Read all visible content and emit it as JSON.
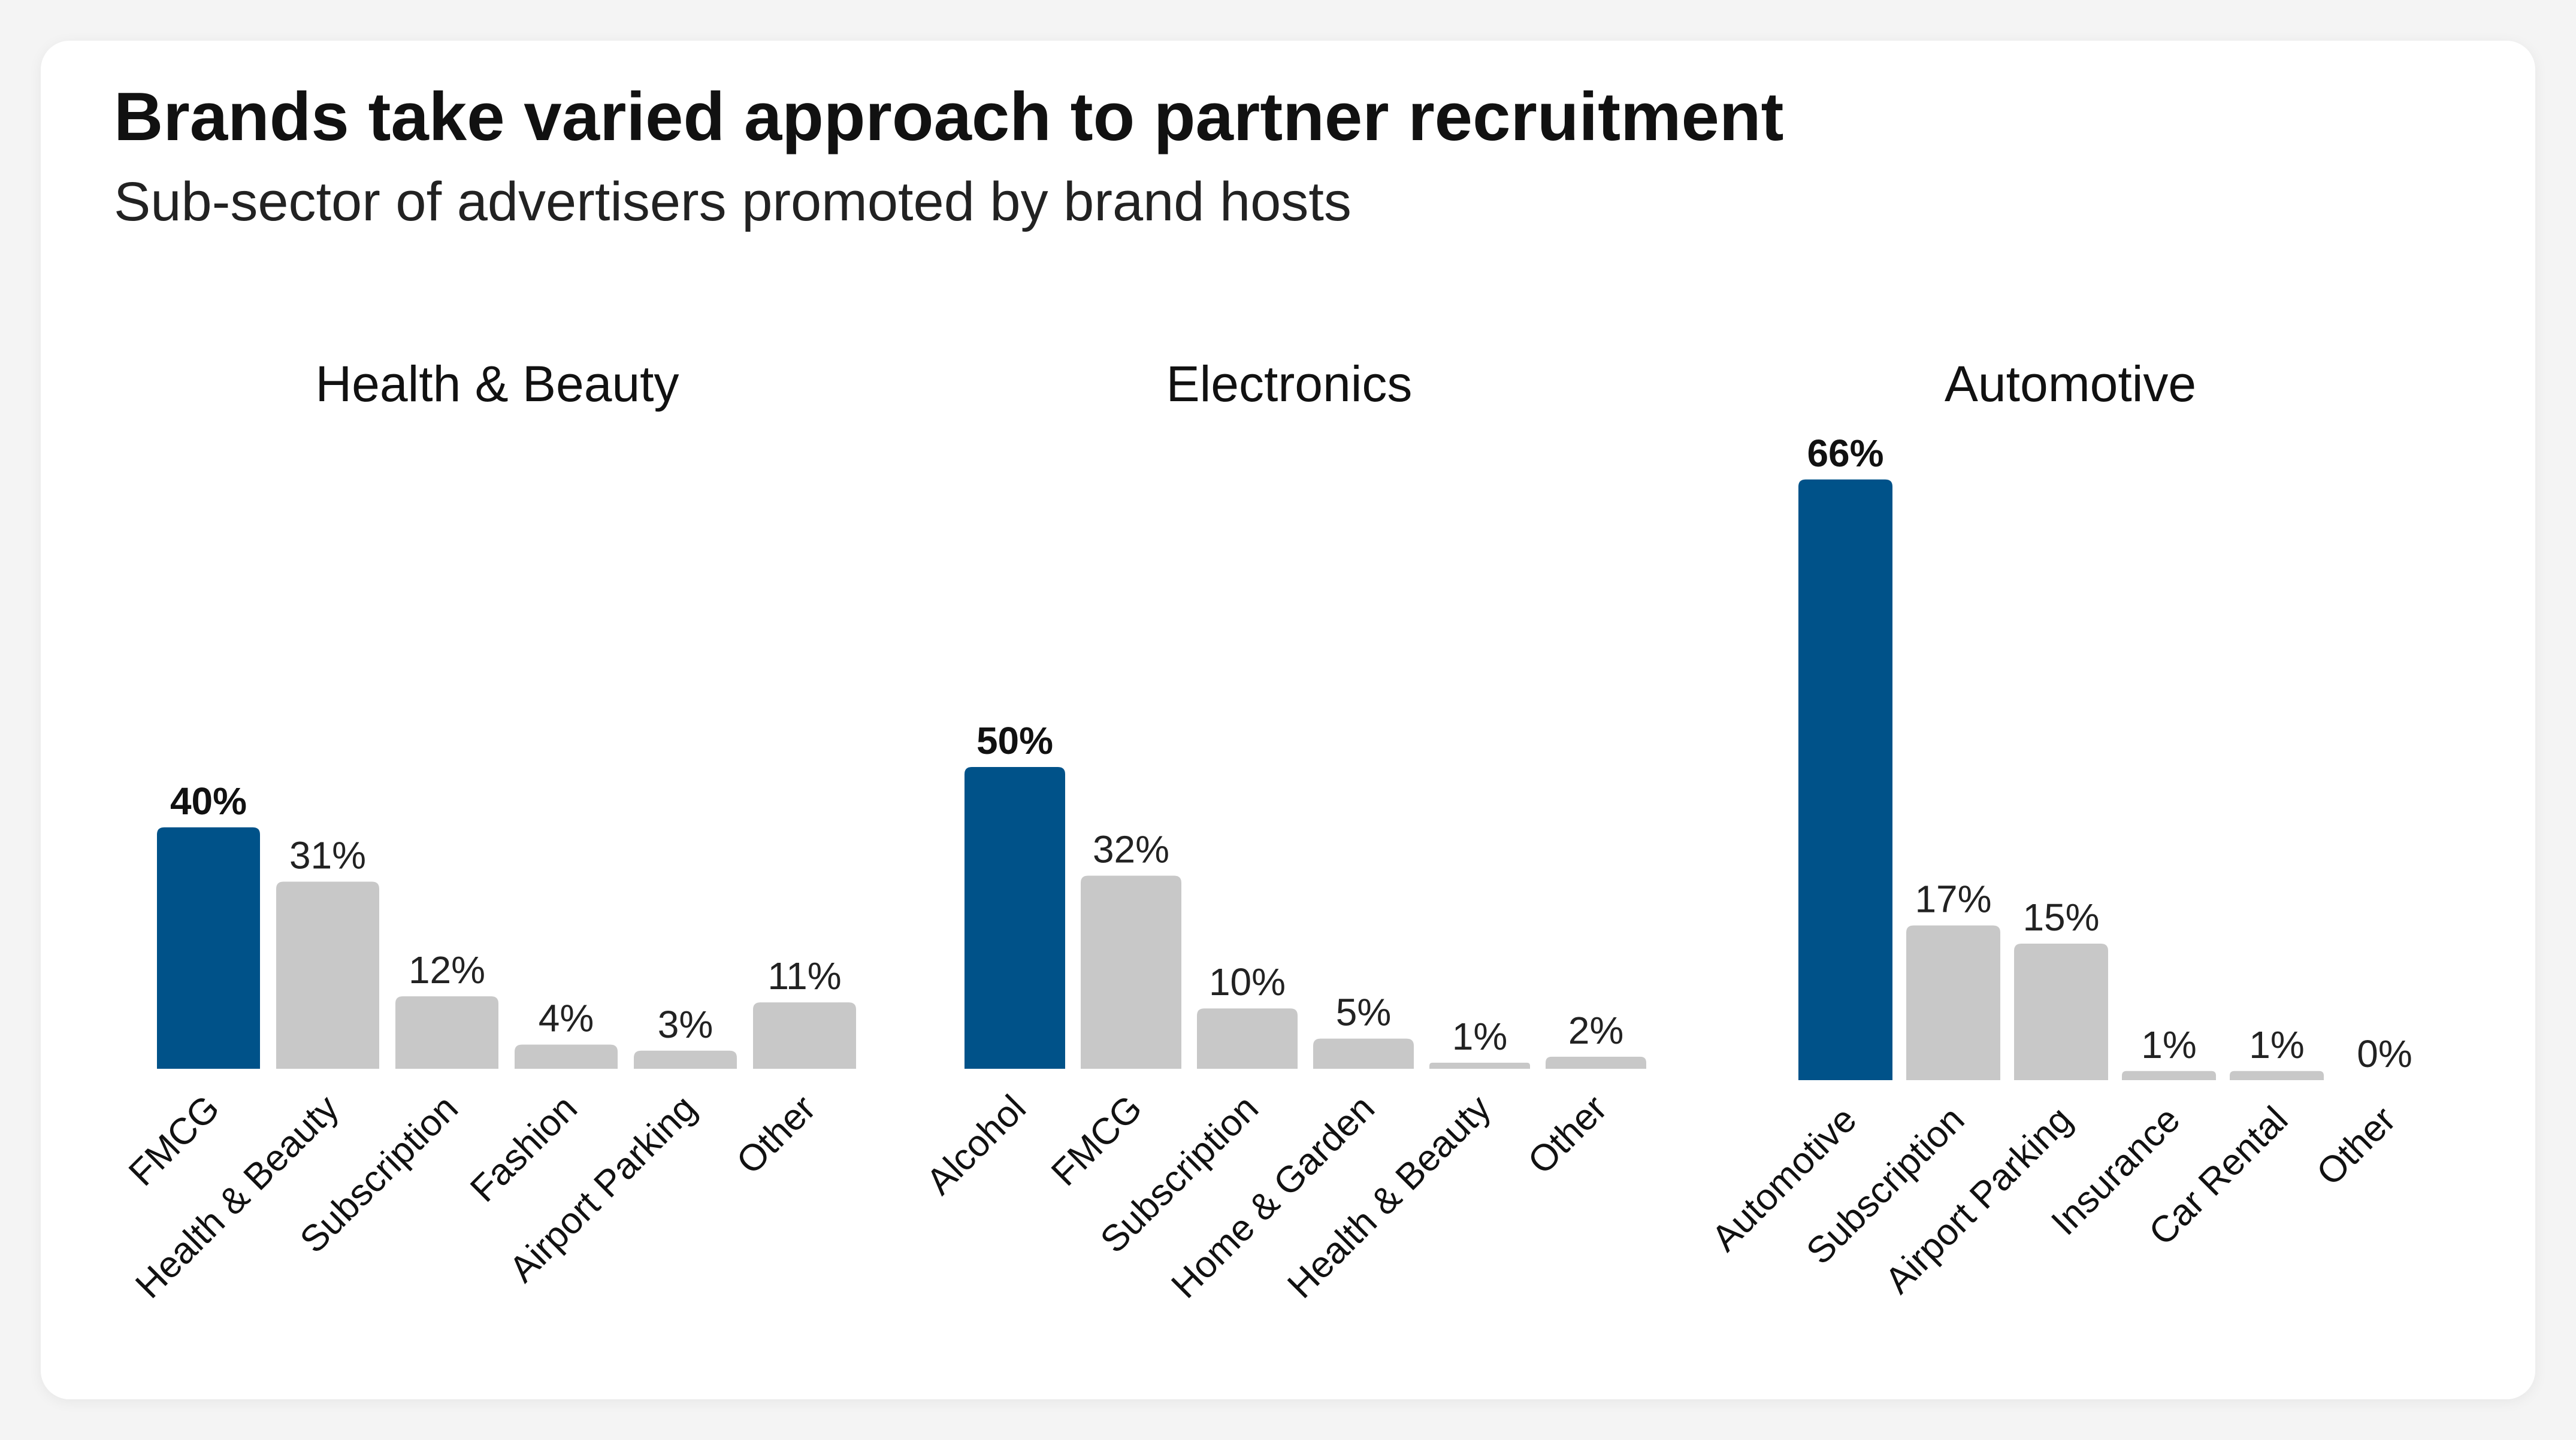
{
  "title": "Brands take varied approach to partner recruitment",
  "subtitle": "Sub-sector of advertisers promoted by brand hosts",
  "colors": {
    "highlight": "#005289",
    "default": "#c8c8c8"
  },
  "chart_data": [
    {
      "type": "bar",
      "title": "Health & Beauty",
      "categories": [
        "FMCG",
        "Health & Beauty",
        "Subscription",
        "Fashion",
        "Airport Parking",
        "Other"
      ],
      "values": [
        40,
        31,
        12,
        4,
        3,
        11
      ],
      "value_labels": [
        "40%",
        "31%",
        "12%",
        "4%",
        "3%",
        "11%"
      ],
      "highlight_index": 0,
      "unit": "%",
      "ylim": [
        0,
        68
      ]
    },
    {
      "type": "bar",
      "title": "Electronics",
      "categories": [
        "Alcohol",
        "FMCG",
        "Subscription",
        "Home & Garden",
        "Health & Beauty",
        "Other"
      ],
      "values": [
        50,
        32,
        10,
        5,
        1,
        2
      ],
      "value_labels": [
        "50%",
        "32%",
        "10%",
        "5%",
        "1%",
        "2%"
      ],
      "highlight_index": 0,
      "unit": "%",
      "ylim": [
        0,
        68
      ]
    },
    {
      "type": "bar",
      "title": "Automotive",
      "categories": [
        "Automotive",
        "Subscription",
        "Airport Parking",
        "Insurance",
        "Car Rental",
        "Other"
      ],
      "values": [
        66,
        17,
        15,
        1,
        1,
        0
      ],
      "value_labels": [
        "66%",
        "17%",
        "15%",
        "1%",
        "1%",
        "0%"
      ],
      "highlight_index": 0,
      "unit": "%",
      "ylim": [
        0,
        68
      ]
    }
  ]
}
